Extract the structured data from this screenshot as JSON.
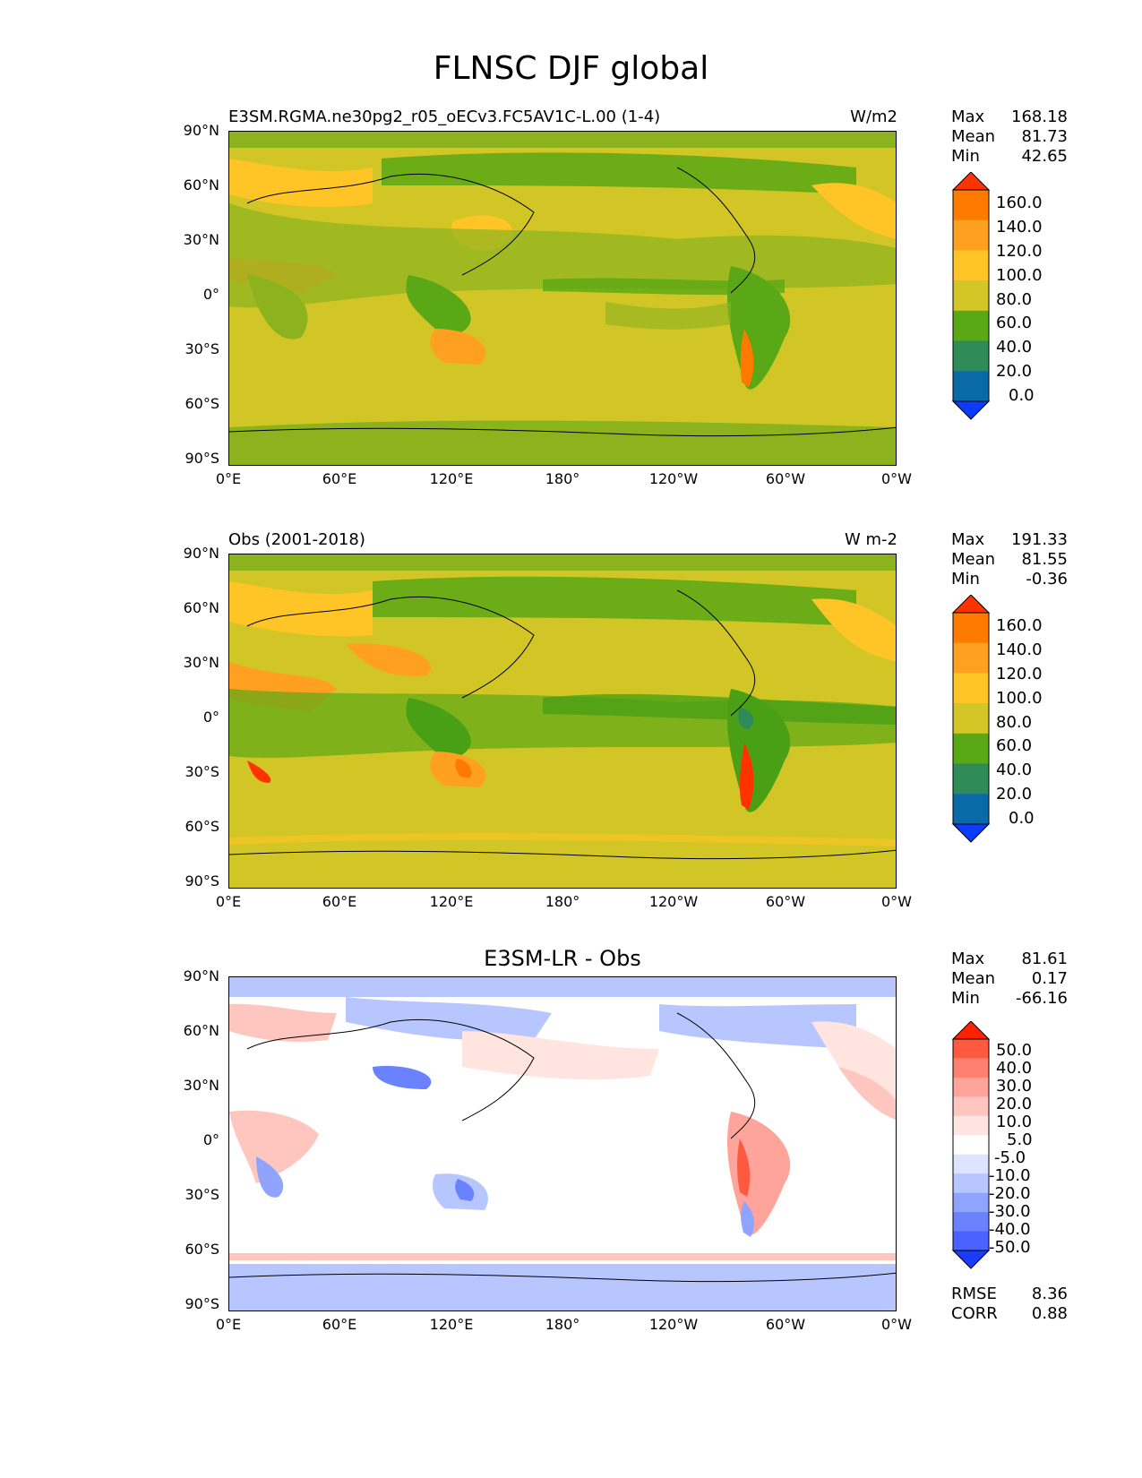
{
  "title": "FLNSC DJF global",
  "x_ticks": [
    "0°E",
    "60°E",
    "120°E",
    "180°",
    "120°W",
    "60°W",
    "0°W"
  ],
  "y_ticks": [
    "90°N",
    "60°N",
    "30°N",
    "0°",
    "30°S",
    "60°S",
    "90°S"
  ],
  "chart_data": [
    {
      "type": "heatmap",
      "title": "E3SM.RGMA.ne30pg2_r05_oECv3.FC5AV1C-L.00 (1-4)",
      "units": "W/m2",
      "stats": {
        "max": "168.18",
        "mean": "81.73",
        "min": "42.65"
      },
      "stat_labels": {
        "max": "Max",
        "mean": "Mean",
        "min": "Min"
      },
      "colorbar_labels": [
        "160.0",
        "140.0",
        "120.0",
        "100.0",
        "80.0",
        "60.0",
        "40.0",
        "20.0",
        "0.0"
      ],
      "colorbar_colors": [
        "#ff3300",
        "#ff7a00",
        "#ffa020",
        "#ffc425",
        "#d2c626",
        "#5aa815",
        "#2e8b57",
        "#0a6aa8",
        "#0a3cff"
      ]
    },
    {
      "type": "heatmap",
      "title": "Obs (2001-2018)",
      "units": "W m-2",
      "stats": {
        "max": "191.33",
        "mean": "81.55",
        "min": "-0.36"
      },
      "stat_labels": {
        "max": "Max",
        "mean": "Mean",
        "min": "Min"
      },
      "colorbar_labels": [
        "160.0",
        "140.0",
        "120.0",
        "100.0",
        "80.0",
        "60.0",
        "40.0",
        "20.0",
        "0.0"
      ],
      "colorbar_colors": [
        "#ff3300",
        "#ff7a00",
        "#ffa020",
        "#ffc425",
        "#d2c626",
        "#5aa815",
        "#2e8b57",
        "#0a6aa8",
        "#0a3cff"
      ]
    },
    {
      "type": "heatmap",
      "title": "E3SM-LR - Obs",
      "stats": {
        "max": "81.61",
        "mean": "0.17",
        "min": "-66.16"
      },
      "stat_labels": {
        "max": "Max",
        "mean": "Mean",
        "min": "Min"
      },
      "metrics": {
        "rmse": "8.36",
        "corr": "0.88"
      },
      "metric_labels": {
        "rmse": "RMSE",
        "corr": "CORR"
      },
      "colorbar_labels": [
        "50.0",
        "40.0",
        "30.0",
        "20.0",
        "10.0",
        "5.0",
        "-5.0",
        "-10.0",
        "-20.0",
        "-30.0",
        "-40.0",
        "-50.0"
      ],
      "colorbar_colors": [
        "#ff2200",
        "#ff5a40",
        "#ff8070",
        "#ffa49a",
        "#ffc6c0",
        "#ffe4e0",
        "#ffffff",
        "#dde4ff",
        "#b8c6ff",
        "#8fa4ff",
        "#6a82ff",
        "#4a62ff",
        "#1a3cff"
      ]
    }
  ]
}
